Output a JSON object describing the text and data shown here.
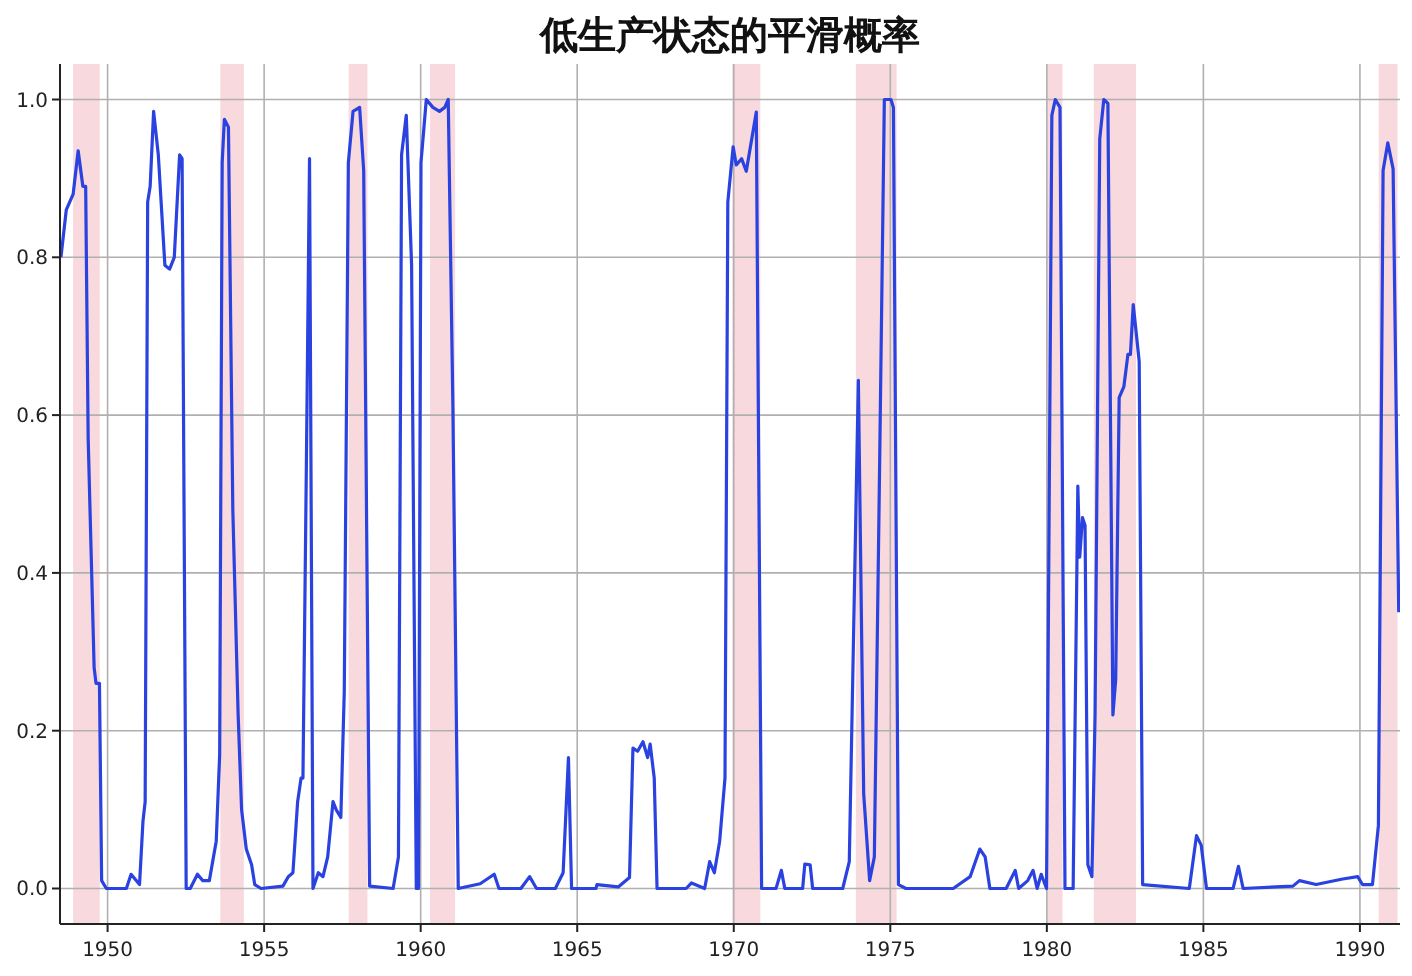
{
  "chart_data": {
    "type": "line",
    "title": "低生产状态的平滑概率",
    "x": [
      1948.51,
      1948.68,
      1948.9,
      1949.06,
      1949.21,
      1949.3,
      1949.38,
      1949.57,
      1949.63,
      1949.74,
      1949.81,
      1949.96,
      1950.6,
      1950.75,
      1951.02,
      1951.13,
      1951.2,
      1951.28,
      1951.36,
      1951.47,
      1951.62,
      1951.83,
      1951.98,
      1952.13,
      1952.3,
      1952.38,
      1952.51,
      1952.64,
      1952.87,
      1953.04,
      1953.25,
      1953.47,
      1953.58,
      1953.66,
      1953.73,
      1953.86,
      1954.0,
      1954.17,
      1954.28,
      1954.43,
      1954.6,
      1954.7,
      1954.9,
      1955.6,
      1955.77,
      1955.92,
      1956.07,
      1956.18,
      1956.24,
      1956.35,
      1956.45,
      1956.56,
      1956.73,
      1956.88,
      1957.03,
      1957.2,
      1957.3,
      1957.45,
      1957.56,
      1957.69,
      1957.84,
      1958.05,
      1958.18,
      1958.37,
      1959.12,
      1959.29,
      1959.39,
      1959.54,
      1959.71,
      1959.86,
      1959.93,
      1960.01,
      1960.18,
      1960.39,
      1960.6,
      1960.77,
      1960.88,
      1961.03,
      1961.2,
      1961.9,
      1962.35,
      1962.5,
      1963.2,
      1963.48,
      1963.7,
      1964.3,
      1964.55,
      1964.72,
      1964.82,
      1965.6,
      1965.63,
      1966.31,
      1966.67,
      1966.78,
      1966.93,
      1967.1,
      1967.25,
      1967.33,
      1967.46,
      1967.55,
      1968.48,
      1968.65,
      1969.07,
      1969.23,
      1969.38,
      1969.55,
      1969.72,
      1969.81,
      1969.98,
      1970.08,
      1970.25,
      1970.4,
      1970.72,
      1970.89,
      1971.35,
      1971.52,
      1971.63,
      1972.2,
      1972.27,
      1972.44,
      1972.52,
      1973.48,
      1973.69,
      1973.98,
      1974.15,
      1974.34,
      1974.49,
      1974.66,
      1974.81,
      1975.02,
      1975.1,
      1975.26,
      1975.5,
      1977.01,
      1977.55,
      1977.86,
      1978.03,
      1978.18,
      1978.7,
      1978.99,
      1979.1,
      1979.39,
      1979.56,
      1979.69,
      1979.82,
      1979.99,
      1980.16,
      1980.27,
      1980.42,
      1980.58,
      1980.84,
      1980.99,
      1981.05,
      1981.14,
      1981.22,
      1981.31,
      1981.44,
      1981.54,
      1981.69,
      1981.82,
      1981.95,
      1982.11,
      1982.2,
      1982.31,
      1982.46,
      1982.59,
      1982.67,
      1982.76,
      1982.95,
      1983.06,
      1984.55,
      1984.78,
      1984.93,
      1985.1,
      1985.95,
      1986.12,
      1986.27,
      1987.86,
      1988.07,
      1988.6,
      1989.45,
      1989.93,
      1990.08,
      1990.4,
      1990.59,
      1990.74,
      1990.89,
      1991.06,
      1991.24
    ],
    "series": [
      {
        "color": "#2a42df",
        "values": [
          0.8,
          0.86,
          0.88,
          0.935,
          0.89,
          0.89,
          0.57,
          0.28,
          0.26,
          0.26,
          0.01,
          0.0,
          0.0,
          0.018,
          0.005,
          0.085,
          0.11,
          0.87,
          0.89,
          0.985,
          0.93,
          0.79,
          0.785,
          0.8,
          0.93,
          0.925,
          0.0,
          0.0,
          0.018,
          0.01,
          0.01,
          0.06,
          0.17,
          0.92,
          0.975,
          0.965,
          0.48,
          0.22,
          0.1,
          0.05,
          0.03,
          0.005,
          0.0,
          0.003,
          0.015,
          0.02,
          0.11,
          0.14,
          0.14,
          0.54,
          0.925,
          0.0,
          0.02,
          0.015,
          0.04,
          0.11,
          0.1,
          0.09,
          0.25,
          0.92,
          0.985,
          0.99,
          0.91,
          0.003,
          0.0,
          0.04,
          0.93,
          0.98,
          0.79,
          0.0,
          0.0,
          0.92,
          1.0,
          0.99,
          0.985,
          0.99,
          1.0,
          0.61,
          0.0,
          0.006,
          0.018,
          0.0,
          0.0,
          0.015,
          0.0,
          0.0,
          0.02,
          0.166,
          0.0,
          0.0,
          0.005,
          0.002,
          0.014,
          0.178,
          0.174,
          0.186,
          0.166,
          0.183,
          0.14,
          0.0,
          0.0,
          0.007,
          0.0,
          0.034,
          0.02,
          0.06,
          0.14,
          0.87,
          0.94,
          0.917,
          0.925,
          0.909,
          0.984,
          0.0,
          0.0,
          0.023,
          0.0,
          0.0,
          0.031,
          0.03,
          0.0,
          0.0,
          0.034,
          0.644,
          0.12,
          0.01,
          0.04,
          0.54,
          1.0,
          1.0,
          0.99,
          0.005,
          0.0,
          0.0,
          0.015,
          0.05,
          0.04,
          0.0,
          0.0,
          0.023,
          0.0,
          0.01,
          0.023,
          0.0,
          0.018,
          0.0,
          0.98,
          1.0,
          0.99,
          0.0,
          0.0,
          0.51,
          0.42,
          0.47,
          0.46,
          0.03,
          0.015,
          0.22,
          0.95,
          1.0,
          0.995,
          0.22,
          0.265,
          0.622,
          0.636,
          0.677,
          0.677,
          0.74,
          0.668,
          0.005,
          0.0,
          0.067,
          0.055,
          0.0,
          0.0,
          0.028,
          0.0,
          0.003,
          0.01,
          0.005,
          0.012,
          0.015,
          0.005,
          0.005,
          0.08,
          0.91,
          0.945,
          0.912,
          0.35
        ]
      }
    ],
    "xlim": [
      1948.48,
      1991.28
    ],
    "xticks": [
      1950,
      1955,
      1960,
      1965,
      1970,
      1975,
      1980,
      1985,
      1990
    ],
    "ylim": [
      -0.045,
      1.045
    ],
    "yticks": [
      {
        "value": 0,
        "label": "0.0"
      },
      {
        "value": 0.2,
        "label": "0.2"
      },
      {
        "value": 0.4,
        "label": "0.4"
      },
      {
        "value": 0.6,
        "label": "0.6"
      },
      {
        "value": 0.8,
        "label": "0.8"
      },
      {
        "value": 1,
        "label": "1.0"
      }
    ],
    "bands": [
      {
        "axis": "x",
        "from": 1948.9,
        "to": 1949.75,
        "color": "#f7d9de"
      },
      {
        "axis": "x",
        "from": 1953.6,
        "to": 1954.35,
        "color": "#f7d9de"
      },
      {
        "axis": "x",
        "from": 1957.7,
        "to": 1958.3,
        "color": "#f7d9de"
      },
      {
        "axis": "x",
        "from": 1960.3,
        "to": 1961.1,
        "color": "#f7d9de"
      },
      {
        "axis": "x",
        "from": 1969.95,
        "to": 1970.85,
        "color": "#f7d9de"
      },
      {
        "axis": "x",
        "from": 1973.9,
        "to": 1975.2,
        "color": "#f7d9de"
      },
      {
        "axis": "x",
        "from": 1980.0,
        "to": 1980.5,
        "color": "#f7d9de"
      },
      {
        "axis": "x",
        "from": 1981.5,
        "to": 1982.85,
        "color": "#f7d9de"
      },
      {
        "axis": "x",
        "from": 1990.6,
        "to": 1991.2,
        "color": "#f7d9de"
      }
    ],
    "grid": true
  }
}
